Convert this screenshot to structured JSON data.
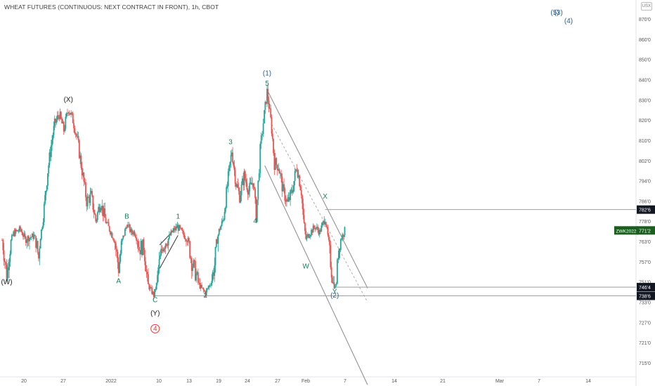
{
  "header": {
    "title": "WHEAT FUTURES (CONTINUOUS: NEXT CONTRACT IN FRONT), 1h, CBOT",
    "currency": "USX"
  },
  "colors": {
    "up": "#26a69a",
    "down": "#ef5350",
    "wave_green": "#1e7a5c",
    "wave_blue": "#2b5f8e",
    "wave_red": "#e53935",
    "trend_line": "#888888"
  },
  "chart_data": {
    "type": "candlestick",
    "symbol": "ZWK2022",
    "interval": "1h",
    "exchange": "CBOT",
    "ylim": [
      7100,
      8800
    ],
    "y_ticks": [
      {
        "value": 8700,
        "label": "870'0"
      },
      {
        "value": 8600,
        "label": "860'0"
      },
      {
        "value": 8500,
        "label": "850'0"
      },
      {
        "value": 8400,
        "label": "840'0"
      },
      {
        "value": 8300,
        "label": "830'0"
      },
      {
        "value": 8200,
        "label": "820'0"
      },
      {
        "value": 8100,
        "label": "810'0"
      },
      {
        "value": 8020,
        "label": "802'0"
      },
      {
        "value": 7940,
        "label": "794'0"
      },
      {
        "value": 7860,
        "label": "786'0"
      },
      {
        "value": 7780,
        "label": "778'0"
      },
      {
        "value": 7630,
        "label": "763'0"
      },
      {
        "value": 7570,
        "label": "757'0"
      },
      {
        "value": 7510,
        "label": "751'0"
      },
      {
        "value": 7330,
        "label": "733'0"
      },
      {
        "value": 7270,
        "label": "727'0"
      },
      {
        "value": 7210,
        "label": "721'0"
      },
      {
        "value": 7150,
        "label": "715'0"
      }
    ],
    "x_ticks": [
      "20",
      "27",
      "2022",
      "10",
      "13",
      "19",
      "24",
      "27",
      "Feb",
      "7",
      "14",
      "21",
      "Mar",
      "7",
      "14"
    ],
    "price_labels": [
      {
        "name": "level-1",
        "value": 7826,
        "label": "782'6",
        "style": "dark"
      },
      {
        "name": "last",
        "value": 7712,
        "label": "771'2",
        "symbol": "ZWK2022",
        "style": "green"
      },
      {
        "name": "level-2",
        "value": 7464,
        "label": "746'4",
        "style": "dark"
      },
      {
        "name": "level-3",
        "value": 7386,
        "label": "738'6",
        "style": "dark"
      }
    ],
    "wave_labels": [
      {
        "text": "(W)",
        "color": "dark",
        "x": 1.0,
        "y": 7490
      },
      {
        "text": "(X)",
        "color": "dark",
        "x": 14.5,
        "y": 8290
      },
      {
        "text": "A",
        "color": "green",
        "x": 25.5,
        "y": 7500
      },
      {
        "text": "B",
        "color": "green",
        "x": 27.3,
        "y": 7790
      },
      {
        "text": "C",
        "color": "green",
        "x": 33.5,
        "y": 7330
      },
      {
        "text": "(Y)",
        "color": "dark",
        "x": 33.5,
        "y": 7290
      },
      {
        "text": "4",
        "color": "red",
        "x": 33.5,
        "y": 7245,
        "circled": true
      },
      {
        "text": "1",
        "color": "green",
        "x": 38.5,
        "y": 7790
      },
      {
        "text": "2",
        "color": "green",
        "x": 44.5,
        "y": 7370
      },
      {
        "text": "3",
        "color": "green",
        "x": 50.0,
        "y": 8085
      },
      {
        "text": "4",
        "color": "green",
        "x": 55.4,
        "y": 7765
      },
      {
        "text": "5",
        "color": "green",
        "x": 58.0,
        "y": 8370
      },
      {
        "text": "(1)",
        "color": "blue",
        "x": 58.0,
        "y": 8420
      },
      {
        "text": "W",
        "color": "green",
        "x": 66.5,
        "y": 7550
      },
      {
        "text": "X",
        "color": "green",
        "x": 70.7,
        "y": 7870
      },
      {
        "text": "Y",
        "color": "green",
        "x": 72.8,
        "y": 7405
      },
      {
        "text": "(2)",
        "color": "blue",
        "x": 72.8,
        "y": 7370
      },
      {
        "text": "(5)",
        "color": "blue",
        "x": 121.0,
        "y": 8720
      },
      {
        "text": "(3)",
        "color": "blue",
        "x": 121.8,
        "y": 8720
      },
      {
        "text": "(4)",
        "color": "blue",
        "x": 124.0,
        "y": 8680
      }
    ],
    "horizontal_lines": [
      {
        "value": 7826,
        "x_start": 70.7
      },
      {
        "value": 7464,
        "x_start": 72.6
      },
      {
        "value": 7386,
        "x_start": 33.2
      }
    ],
    "channel": {
      "upper": [
        [
          58.0,
          8350
        ],
        [
          80.0,
          7455
        ]
      ],
      "lower": [
        [
          57.5,
          8000
        ],
        [
          80.0,
          7085
        ]
      ],
      "mid_dashed": [
        [
          59.0,
          8180
        ],
        [
          80.0,
          7330
        ]
      ]
    },
    "wave1_channel": [
      [
        34.5,
        7620
      ],
      [
        38.5,
        7745
      ],
      [
        34.5,
        7550
      ],
      [
        38.5,
        7675
      ]
    ],
    "path": [
      [
        0.0,
        7640
      ],
      [
        1.0,
        7530
      ],
      [
        2.5,
        7690
      ],
      [
        4.0,
        7720
      ],
      [
        5.0,
        7650
      ],
      [
        6.0,
        7660
      ],
      [
        7.0,
        7670
      ],
      [
        8.0,
        7580
      ],
      [
        9.0,
        7800
      ],
      [
        10.0,
        7980
      ],
      [
        11.5,
        8180
      ],
      [
        12.5,
        8230
      ],
      [
        13.5,
        8150
      ],
      [
        14.5,
        8260
      ],
      [
        15.5,
        8200
      ],
      [
        16.5,
        8100
      ],
      [
        17.5,
        7980
      ],
      [
        18.5,
        7860
      ],
      [
        19.5,
        7880
      ],
      [
        20.5,
        7780
      ],
      [
        21.5,
        7860
      ],
      [
        22.5,
        7790
      ],
      [
        23.5,
        7720
      ],
      [
        24.5,
        7650
      ],
      [
        25.5,
        7550
      ],
      [
        26.5,
        7660
      ],
      [
        27.3,
        7760
      ],
      [
        28.2,
        7700
      ],
      [
        29.0,
        7700
      ],
      [
        30.0,
        7610
      ],
      [
        31.0,
        7620
      ],
      [
        32.0,
        7480
      ],
      [
        33.2,
        7390
      ],
      [
        34.2,
        7550
      ],
      [
        35.2,
        7620
      ],
      [
        36.2,
        7640
      ],
      [
        37.2,
        7700
      ],
      [
        38.4,
        7740
      ],
      [
        39.5,
        7690
      ],
      [
        40.5,
        7650
      ],
      [
        41.5,
        7570
      ],
      [
        42.5,
        7530
      ],
      [
        43.5,
        7460
      ],
      [
        44.5,
        7410
      ],
      [
        45.5,
        7490
      ],
      [
        46.5,
        7560
      ],
      [
        47.5,
        7710
      ],
      [
        48.5,
        7800
      ],
      [
        49.5,
        7950
      ],
      [
        50.3,
        8060
      ],
      [
        51.2,
        7930
      ],
      [
        52.0,
        7880
      ],
      [
        53.0,
        7960
      ],
      [
        54.0,
        7900
      ],
      [
        55.0,
        7940
      ],
      [
        55.6,
        7800
      ],
      [
        56.5,
        8060
      ],
      [
        57.4,
        8230
      ],
      [
        58.0,
        8340
      ],
      [
        58.8,
        8200
      ],
      [
        59.6,
        8010
      ],
      [
        60.5,
        8000
      ],
      [
        61.5,
        7900
      ],
      [
        62.5,
        7850
      ],
      [
        63.5,
        7900
      ],
      [
        64.5,
        8000
      ],
      [
        65.5,
        7900
      ],
      [
        66.5,
        7650
      ],
      [
        67.5,
        7700
      ],
      [
        68.5,
        7740
      ],
      [
        69.5,
        7700
      ],
      [
        70.7,
        7800
      ],
      [
        71.5,
        7620
      ],
      [
        72.3,
        7520
      ],
      [
        72.9,
        7460
      ],
      [
        73.6,
        7600
      ],
      [
        74.3,
        7660
      ],
      [
        75.0,
        7712
      ]
    ]
  }
}
